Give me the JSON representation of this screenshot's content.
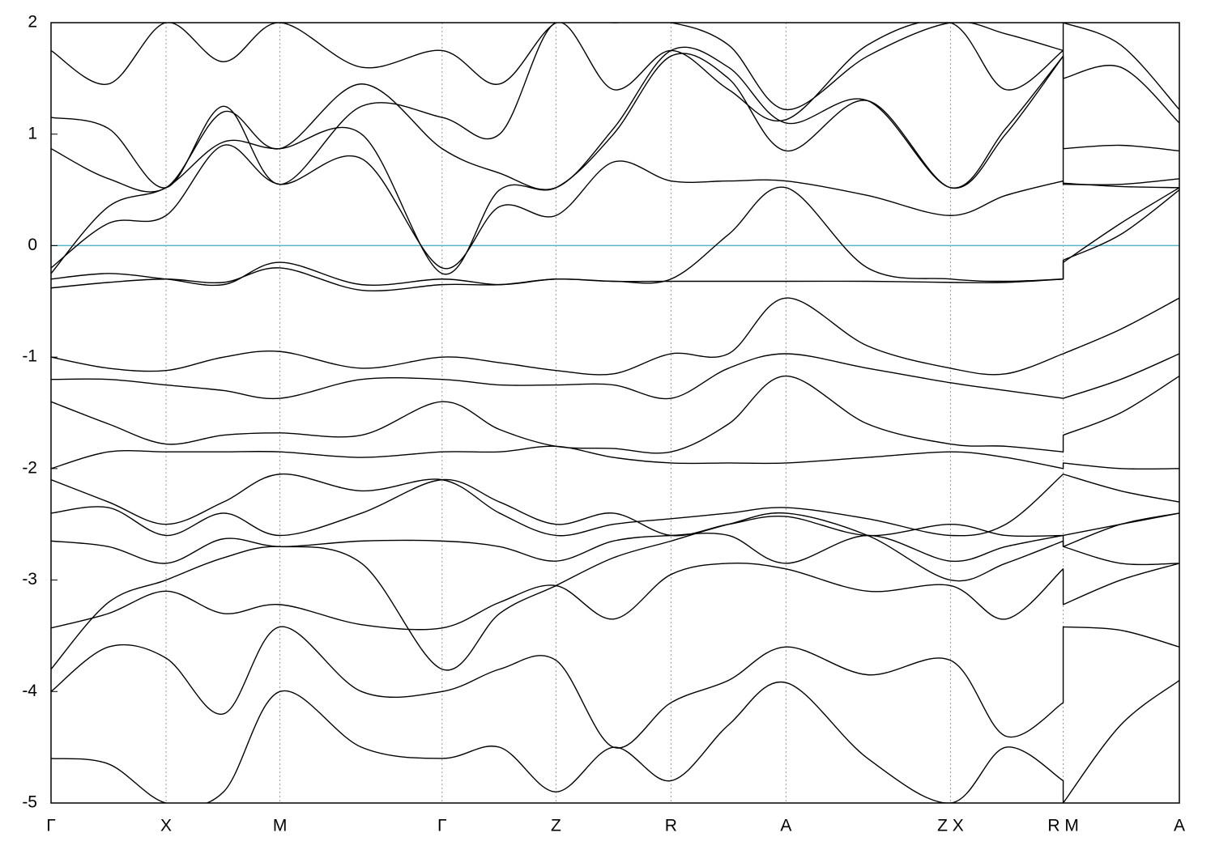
{
  "chart_data": {
    "type": "line",
    "x": [
      0,
      0.5,
      1,
      1.5,
      1.99,
      2.7,
      3.4,
      3.9,
      4.39,
      4.89,
      5.39,
      5.89,
      6.39,
      7.1,
      7.82,
      8.3,
      8.8,
      8.8,
      9.3,
      9.81
    ],
    "xlim": [
      0,
      9.81
    ],
    "xticks": [
      {
        "value": 0,
        "label": "Γ"
      },
      {
        "value": 1,
        "label": "X"
      },
      {
        "value": 1.99,
        "label": "M"
      },
      {
        "value": 3.4,
        "label": "Γ"
      },
      {
        "value": 4.39,
        "label": "Z"
      },
      {
        "value": 5.39,
        "label": "R"
      },
      {
        "value": 6.39,
        "label": "A"
      },
      {
        "value": 7.82,
        "label": "Z X"
      },
      {
        "value": 8.8,
        "label": "R M"
      },
      {
        "value": 9.81,
        "label": "A"
      }
    ],
    "ylim": [
      -5,
      2
    ],
    "yticks": [
      2,
      1,
      0,
      -1,
      -2,
      -3,
      -4,
      -5
    ],
    "grid": true,
    "hline": 0,
    "hline_color": "#5ab4c8",
    "series": [
      {
        "color": "#000000",
        "values": [
          -0.2,
          0.2,
          0.27,
          0.9,
          0.55,
          0.78,
          -0.2,
          0.35,
          0.27,
          0.75,
          0.58,
          0.58,
          0.58,
          0.45,
          0.27,
          0.45,
          0.58,
          0.56,
          0.53,
          0.52
        ]
      },
      {
        "color": "#000000",
        "values": [
          -0.25,
          0.35,
          0.52,
          0.93,
          0.87,
          1.0,
          -0.25,
          0.5,
          0.52,
          1.0,
          1.7,
          1.5,
          0.85,
          1.3,
          0.52,
          1.0,
          1.7,
          0.55,
          0.55,
          0.6
        ]
      },
      {
        "color": "#000000",
        "values": [
          0.87,
          0.6,
          0.52,
          1.2,
          0.87,
          1.45,
          0.87,
          0.65,
          0.52,
          1.05,
          1.75,
          1.6,
          1.1,
          1.3,
          0.52,
          1.05,
          1.7,
          0.87,
          0.9,
          0.85
        ]
      },
      {
        "color": "#000000",
        "values": [
          1.15,
          1.05,
          0.52,
          1.25,
          0.55,
          1.25,
          1.15,
          1.0,
          2.0,
          1.4,
          1.75,
          1.4,
          1.13,
          1.8,
          2.0,
          1.4,
          1.75,
          1.5,
          1.6,
          1.1
        ]
      },
      {
        "color": "#000000",
        "values": [
          1.75,
          1.45,
          2.0,
          1.65,
          2.0,
          1.6,
          1.75,
          1.45,
          2.0,
          2.0,
          2.0,
          1.8,
          1.22,
          1.7,
          2.0,
          1.9,
          1.75,
          2.0,
          1.8,
          1.22
        ]
      },
      {
        "color": "#000000",
        "values": [
          -0.3,
          -0.25,
          -0.3,
          -0.35,
          -0.15,
          -0.35,
          -0.3,
          -0.35,
          -0.3,
          -0.32,
          -0.3,
          0.1,
          0.52,
          -0.2,
          -0.3,
          -0.32,
          -0.3,
          -0.15,
          0.2,
          0.52
        ]
      },
      {
        "color": "#000000",
        "values": [
          -0.38,
          -0.33,
          -0.3,
          -0.33,
          -0.2,
          -0.4,
          -0.35,
          -0.35,
          -0.3,
          -0.32,
          -0.32,
          -0.32,
          -0.32,
          -0.32,
          -0.33,
          -0.33,
          -0.3,
          -0.13,
          0.1,
          0.5
        ]
      },
      {
        "color": "#000000",
        "values": [
          -1.0,
          -1.1,
          -1.12,
          -1.0,
          -0.95,
          -1.1,
          -1.0,
          -1.05,
          -1.12,
          -1.15,
          -0.97,
          -0.97,
          -0.47,
          -0.9,
          -1.1,
          -1.15,
          -0.97,
          -0.97,
          -0.75,
          -0.47
        ]
      },
      {
        "color": "#000000",
        "values": [
          -1.2,
          -1.2,
          -1.25,
          -1.3,
          -1.37,
          -1.2,
          -1.2,
          -1.25,
          -1.25,
          -1.25,
          -1.37,
          -1.1,
          -0.97,
          -1.1,
          -1.23,
          -1.3,
          -1.37,
          -1.37,
          -1.2,
          -0.97
        ]
      },
      {
        "color": "#000000",
        "values": [
          -1.4,
          -1.6,
          -1.78,
          -1.7,
          -1.68,
          -1.7,
          -1.4,
          -1.65,
          -1.8,
          -1.82,
          -1.85,
          -1.6,
          -1.17,
          -1.6,
          -1.78,
          -1.8,
          -1.85,
          -1.7,
          -1.5,
          -1.17
        ]
      },
      {
        "color": "#000000",
        "values": [
          -2.0,
          -1.85,
          -1.85,
          -1.85,
          -1.85,
          -1.9,
          -1.85,
          -1.85,
          -1.8,
          -1.9,
          -1.95,
          -1.95,
          -1.95,
          -1.9,
          -1.85,
          -1.9,
          -2.0,
          -1.95,
          -2.0,
          -2.0
        ]
      },
      {
        "color": "#000000",
        "values": [
          -2.1,
          -2.3,
          -2.5,
          -2.3,
          -2.05,
          -2.2,
          -2.1,
          -2.4,
          -2.6,
          -2.5,
          -2.45,
          -2.4,
          -2.35,
          -2.45,
          -2.6,
          -2.5,
          -2.05,
          -2.05,
          -2.2,
          -2.3
        ]
      },
      {
        "color": "#000000",
        "values": [
          -2.4,
          -2.35,
          -2.6,
          -2.4,
          -2.6,
          -2.4,
          -2.1,
          -2.3,
          -2.5,
          -2.4,
          -2.6,
          -2.5,
          -2.43,
          -2.6,
          -2.5,
          -2.6,
          -2.6,
          -2.6,
          -2.5,
          -2.4
        ]
      },
      {
        "color": "#000000",
        "values": [
          -2.65,
          -2.7,
          -2.85,
          -2.63,
          -2.7,
          -2.65,
          -2.65,
          -2.7,
          -2.83,
          -2.65,
          -2.6,
          -2.6,
          -2.85,
          -2.6,
          -2.83,
          -2.7,
          -2.6,
          -2.7,
          -2.85,
          -2.85
        ]
      },
      {
        "color": "#000000",
        "values": [
          -3.43,
          -3.3,
          -3.1,
          -3.3,
          -3.22,
          -3.4,
          -3.43,
          -3.2,
          -3.05,
          -3.35,
          -2.95,
          -2.85,
          -2.9,
          -3.1,
          -3.05,
          -3.35,
          -2.9,
          -3.22,
          -3.0,
          -2.85
        ]
      },
      {
        "color": "#000000",
        "values": [
          -3.8,
          -3.2,
          -3.0,
          -2.8,
          -2.7,
          -2.85,
          -3.8,
          -3.3,
          -3.05,
          -2.8,
          -2.65,
          -2.5,
          -2.4,
          -2.6,
          -3.0,
          -2.85,
          -2.65,
          -2.7,
          -2.5,
          -2.4
        ]
      },
      {
        "color": "#000000",
        "values": [
          -4.0,
          -3.6,
          -3.7,
          -4.2,
          -3.42,
          -4.0,
          -4.0,
          -3.8,
          -3.72,
          -4.5,
          -4.1,
          -3.9,
          -3.6,
          -3.85,
          -3.72,
          -4.4,
          -4.1,
          -3.42,
          -3.45,
          -3.6
        ]
      },
      {
        "color": "#000000",
        "values": [
          -4.6,
          -4.65,
          -5.0,
          -4.9,
          -4.0,
          -4.5,
          -4.6,
          -4.5,
          -4.9,
          -4.5,
          -4.8,
          -4.3,
          -3.92,
          -4.6,
          -5.0,
          -4.5,
          -4.8,
          -5.0,
          -4.3,
          -3.9
        ]
      }
    ]
  }
}
